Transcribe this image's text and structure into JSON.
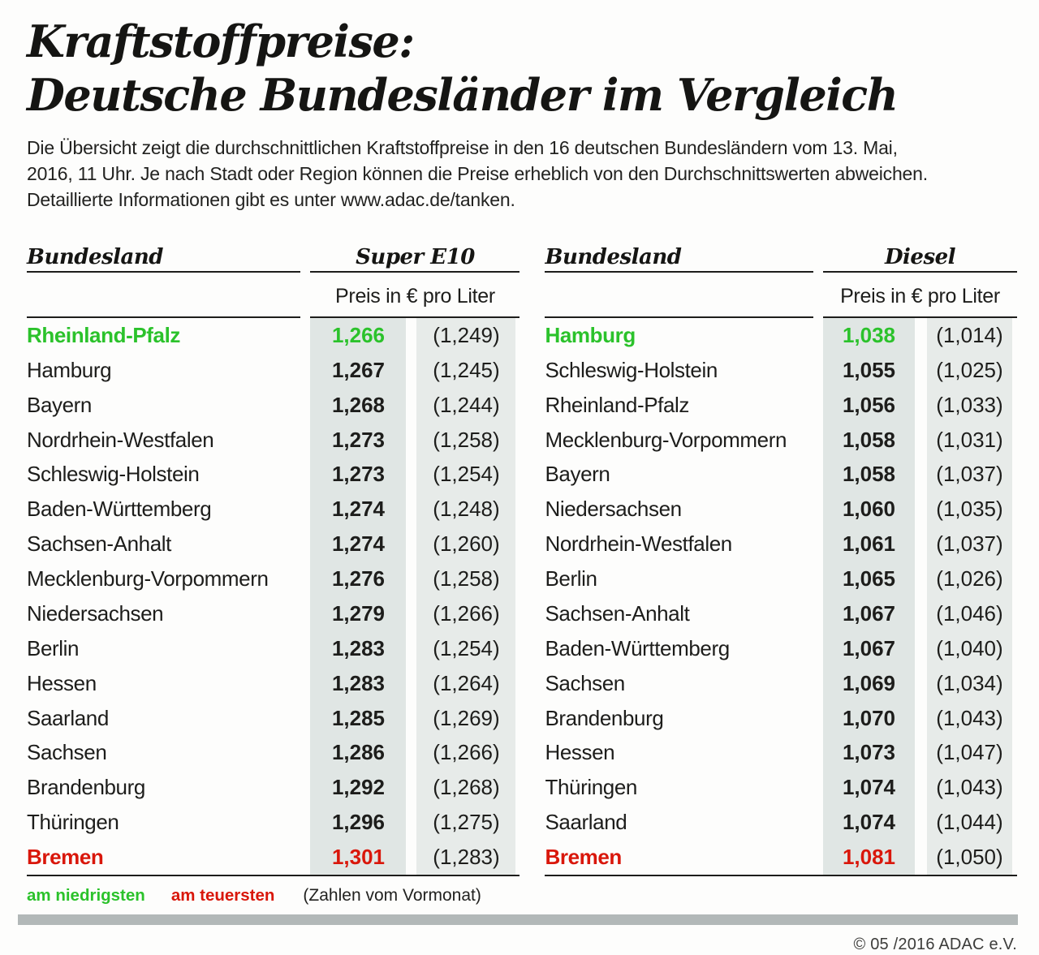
{
  "title": {
    "line1": "Kraftstoffpreise:",
    "line2": "Deutsche Bundesländer im Vergleich"
  },
  "intro_lines": [
    "Die Übersicht zeigt die durchschnittlichen Kraftstoffpreise in den 16 deutschen Bundesländern vom 13. Mai,",
    "2016, 11 Uhr. Je nach Stadt oder Region können die Preise erheblich von den Durchschnittswerten abweichen.",
    "Detaillierte Informationen gibt es unter www.adac.de/tanken."
  ],
  "colors": {
    "green": "#2bc22b",
    "red": "#d9170b",
    "shade_price_col": "#e0e6e4",
    "shade_prev_col": "#e7ebe9",
    "footer_bar": "#b2b8b8"
  },
  "chart_data": [
    {
      "type": "table",
      "title": "Super E10",
      "state_header": "Bundesland",
      "fuel_header": "Super E10",
      "unit_header": "Preis in € pro Liter",
      "rows": [
        {
          "state": "Rheinland-Pfalz",
          "price": "1,266",
          "prev": "(1,249)",
          "highlight": "lowest"
        },
        {
          "state": "Hamburg",
          "price": "1,267",
          "prev": "(1,245)"
        },
        {
          "state": "Bayern",
          "price": "1,268",
          "prev": "(1,244)"
        },
        {
          "state": "Nordrhein-Westfalen",
          "price": "1,273",
          "prev": "(1,258)"
        },
        {
          "state": "Schleswig-Holstein",
          "price": "1,273",
          "prev": "(1,254)"
        },
        {
          "state": "Baden-Württemberg",
          "price": "1,274",
          "prev": "(1,248)"
        },
        {
          "state": "Sachsen-Anhalt",
          "price": "1,274",
          "prev": "(1,260)"
        },
        {
          "state": "Mecklenburg-Vorpommern",
          "price": "1,276",
          "prev": "(1,258)"
        },
        {
          "state": "Niedersachsen",
          "price": "1,279",
          "prev": "(1,266)"
        },
        {
          "state": "Berlin",
          "price": "1,283",
          "prev": "(1,254)"
        },
        {
          "state": "Hessen",
          "price": "1,283",
          "prev": "(1,264)"
        },
        {
          "state": "Saarland",
          "price": "1,285",
          "prev": "(1,269)"
        },
        {
          "state": "Sachsen",
          "price": "1,286",
          "prev": "(1,266)"
        },
        {
          "state": "Brandenburg",
          "price": "1,292",
          "prev": "(1,268)"
        },
        {
          "state": "Thüringen",
          "price": "1,296",
          "prev": "(1,275)"
        },
        {
          "state": "Bremen",
          "price": "1,301",
          "prev": "(1,283)",
          "highlight": "highest"
        }
      ]
    },
    {
      "type": "table",
      "title": "Diesel",
      "state_header": "Bundesland",
      "fuel_header": "Diesel",
      "unit_header": "Preis in € pro Liter",
      "rows": [
        {
          "state": "Hamburg",
          "price": "1,038",
          "prev": "(1,014)",
          "highlight": "lowest"
        },
        {
          "state": "Schleswig-Holstein",
          "price": "1,055",
          "prev": "(1,025)"
        },
        {
          "state": "Rheinland-Pfalz",
          "price": "1,056",
          "prev": "(1,033)"
        },
        {
          "state": "Mecklenburg-Vorpommern",
          "price": "1,058",
          "prev": "(1,031)"
        },
        {
          "state": "Bayern",
          "price": "1,058",
          "prev": "(1,037)"
        },
        {
          "state": "Niedersachsen",
          "price": "1,060",
          "prev": "(1,035)"
        },
        {
          "state": "Nordrhein-Westfalen",
          "price": "1,061",
          "prev": "(1,037)"
        },
        {
          "state": "Berlin",
          "price": "1,065",
          "prev": "(1,026)"
        },
        {
          "state": "Sachsen-Anhalt",
          "price": "1,067",
          "prev": "(1,046)"
        },
        {
          "state": "Baden-Württemberg",
          "price": "1,067",
          "prev": "(1,040)"
        },
        {
          "state": "Sachsen",
          "price": "1,069",
          "prev": "(1,034)"
        },
        {
          "state": "Brandenburg",
          "price": "1,070",
          "prev": "(1,043)"
        },
        {
          "state": "Hessen",
          "price": "1,073",
          "prev": "(1,047)"
        },
        {
          "state": "Thüringen",
          "price": "1,074",
          "prev": "(1,043)"
        },
        {
          "state": "Saarland",
          "price": "1,074",
          "prev": "(1,044)"
        },
        {
          "state": "Bremen",
          "price": "1,081",
          "prev": "(1,050)",
          "highlight": "highest"
        }
      ]
    }
  ],
  "legend": {
    "lowest_label": "am niedrigsten",
    "highest_label": "am teuersten",
    "note": "(Zahlen vom Vormonat)"
  },
  "copyright": "© 05 /2016 ADAC e.V."
}
